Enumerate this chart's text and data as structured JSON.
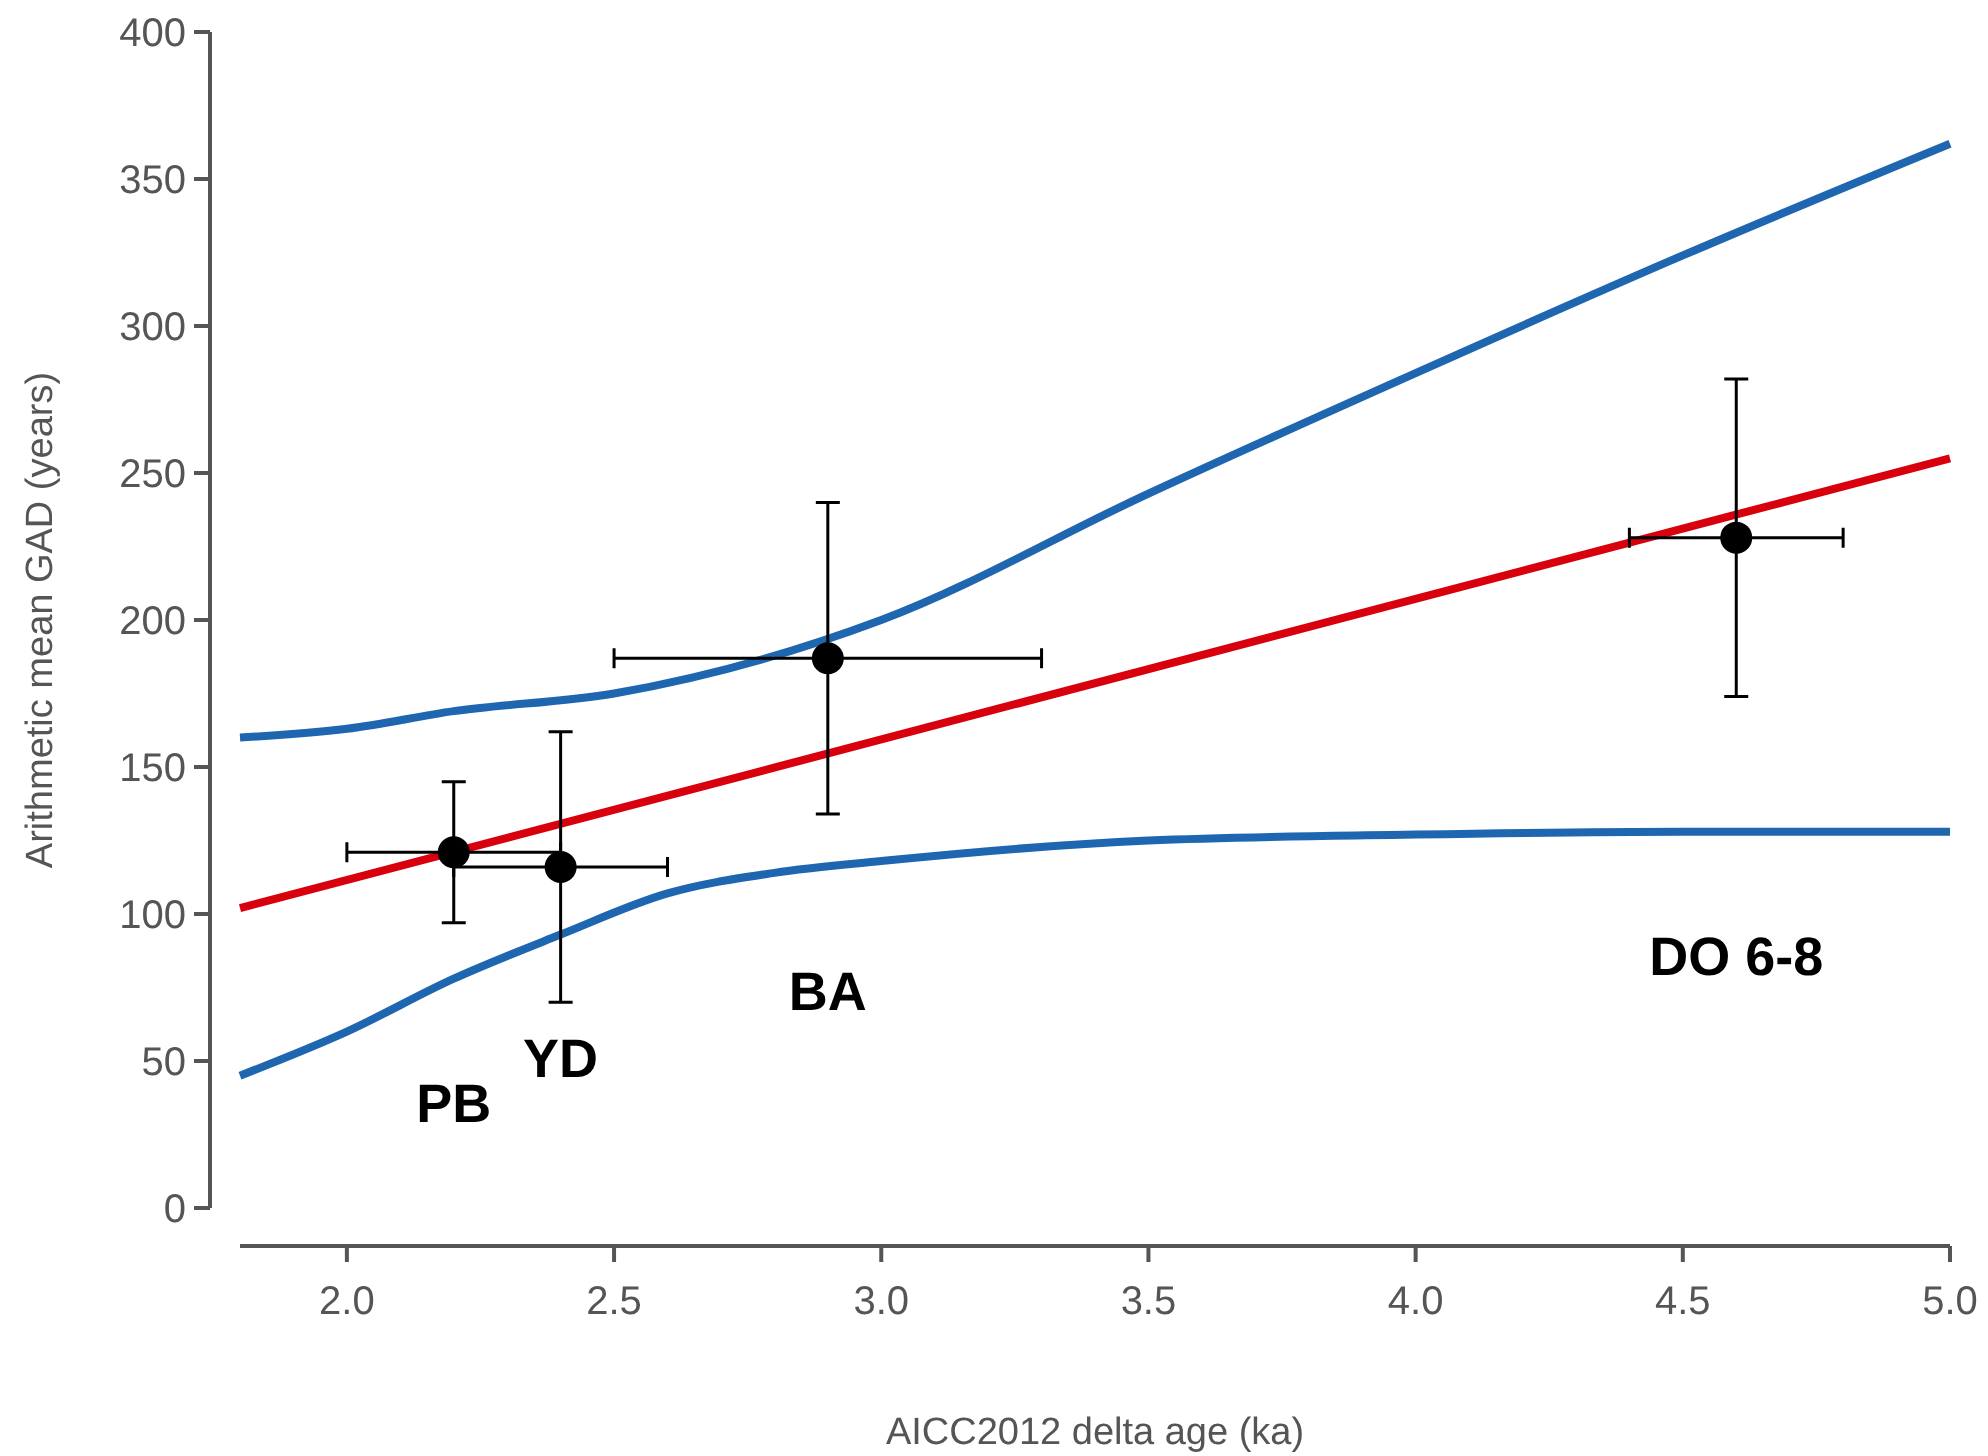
{
  "chart_data": {
    "type": "scatter",
    "xlabel": "AICC2012 delta age (ka)",
    "ylabel": "Arithmetic mean GAD (years)",
    "xlim": [
      1.8,
      5.0
    ],
    "xticks": [
      {
        "value": 2,
        "label": "2.0"
      },
      {
        "value": 2.5,
        "label": "2.5"
      },
      {
        "value": 3,
        "label": "3.0"
      },
      {
        "value": 3.5,
        "label": "3.5"
      },
      {
        "value": 4,
        "label": "4.0"
      },
      {
        "value": 4.5,
        "label": "4.5"
      },
      {
        "value": 5,
        "label": "5.0"
      }
    ],
    "ylim": [
      0,
      400
    ],
    "yticks": [
      0,
      50,
      100,
      150,
      200,
      250,
      300,
      350,
      400
    ],
    "grid": false,
    "series": [
      {
        "type": "line",
        "color": "#1f66b0",
        "x": [
          1.8,
          2.0,
          2.2,
          2.5,
          3.0,
          3.5,
          4.0,
          4.5,
          5.0
        ],
        "values": [
          160,
          163,
          169,
          175,
          200,
          243,
          284,
          324,
          362
        ]
      },
      {
        "type": "line",
        "color": "#1f66b0",
        "x": [
          1.8,
          2.0,
          2.2,
          2.4,
          2.6,
          2.8,
          3.0,
          3.5,
          4.0,
          4.5,
          5.0
        ],
        "values": [
          45,
          60,
          78,
          93,
          107,
          114,
          118,
          125,
          127,
          128,
          128
        ]
      },
      {
        "type": "line",
        "color": "#d9000d",
        "x": [
          1.8,
          5.0
        ],
        "values": [
          102,
          255
        ]
      },
      {
        "color": "#000000",
        "marker": "circle",
        "x": [
          2.2,
          2.4,
          2.9,
          4.6
        ],
        "values": [
          121,
          116,
          187,
          228
        ],
        "errors": [
          [
            97,
            145
          ],
          [
            70,
            162
          ],
          [
            134,
            240
          ],
          [
            174,
            282
          ]
        ],
        "xerrors": [
          [
            2.0,
            2.4
          ],
          [
            2.2,
            2.6
          ],
          [
            2.5,
            3.3
          ],
          [
            4.4,
            4.8
          ]
        ]
      }
    ],
    "annotations": [
      "PB",
      "YD",
      "BA",
      "DO 6-8"
    ]
  }
}
